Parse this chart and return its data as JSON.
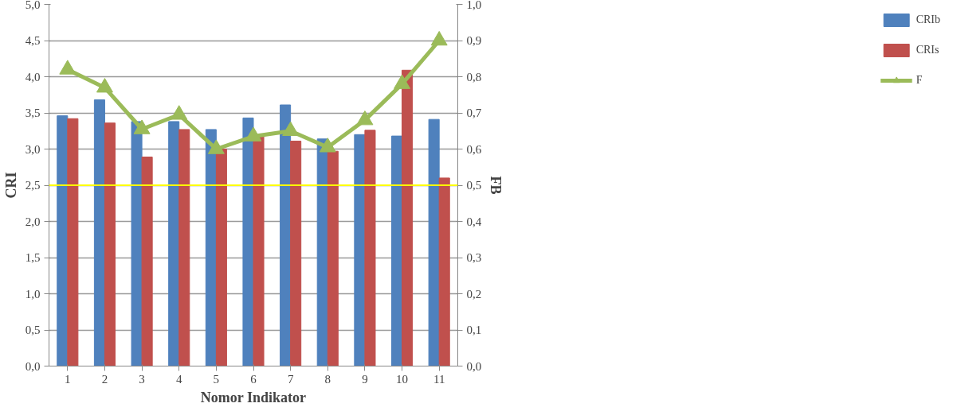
{
  "chart_data": {
    "type": "bar",
    "xlabel": "Nomor Indikator",
    "ylabel": "CRI",
    "y2label": "FB",
    "categories": [
      "1",
      "2",
      "3",
      "4",
      "5",
      "6",
      "7",
      "8",
      "9",
      "10",
      "11"
    ],
    "series": [
      {
        "name": "CRIb",
        "color": "#4f81bd",
        "values": [
          3.46,
          3.68,
          3.38,
          3.38,
          3.27,
          3.43,
          3.61,
          3.14,
          3.2,
          3.18,
          3.41
        ]
      },
      {
        "name": "CRIs",
        "color": "#c0504d",
        "values": [
          3.42,
          3.36,
          2.89,
          3.27,
          3.0,
          3.17,
          3.11,
          2.97,
          3.26,
          4.09,
          2.6
        ]
      },
      {
        "name": "F",
        "type": "line",
        "axis": "y2",
        "color": "#9bbb59",
        "marker": "triangle",
        "values": [
          0.82,
          0.77,
          0.655,
          0.695,
          0.6,
          0.635,
          0.65,
          0.605,
          0.68,
          0.78,
          0.9
        ]
      }
    ],
    "ylim": [
      0,
      5
    ],
    "yticks": [
      {
        "value": 0,
        "label": "0,0"
      },
      {
        "value": 0.5,
        "label": "0,5"
      },
      {
        "value": 1,
        "label": "1,0"
      },
      {
        "value": 1.5,
        "label": "1,5"
      },
      {
        "value": 2,
        "label": "2,0"
      },
      {
        "value": 2.5,
        "label": "2,5"
      },
      {
        "value": 3,
        "label": "3,0"
      },
      {
        "value": 3.5,
        "label": "3,5"
      },
      {
        "value": 4,
        "label": "4,0"
      },
      {
        "value": 4.5,
        "label": "4,5"
      },
      {
        "value": 5,
        "label": "5,0"
      }
    ],
    "y2lim": [
      0,
      1
    ],
    "y2ticks": [
      {
        "value": 0,
        "label": "0,0"
      },
      {
        "value": 0.1,
        "label": "0,1"
      },
      {
        "value": 0.2,
        "label": "0,2"
      },
      {
        "value": 0.3,
        "label": "0,3"
      },
      {
        "value": 0.4,
        "label": "0,4"
      },
      {
        "value": 0.5,
        "label": "0,5"
      },
      {
        "value": 0.6,
        "label": "0,6"
      },
      {
        "value": 0.7,
        "label": "0,7"
      },
      {
        "value": 0.8,
        "label": "0,8"
      },
      {
        "value": 0.9,
        "label": "0,9"
      },
      {
        "value": 1,
        "label": "1,0"
      }
    ],
    "ref_lines": [
      {
        "axis": "y2",
        "value": 0.5,
        "color": "#ffff00"
      }
    ],
    "grid": "y",
    "legend": "right"
  }
}
